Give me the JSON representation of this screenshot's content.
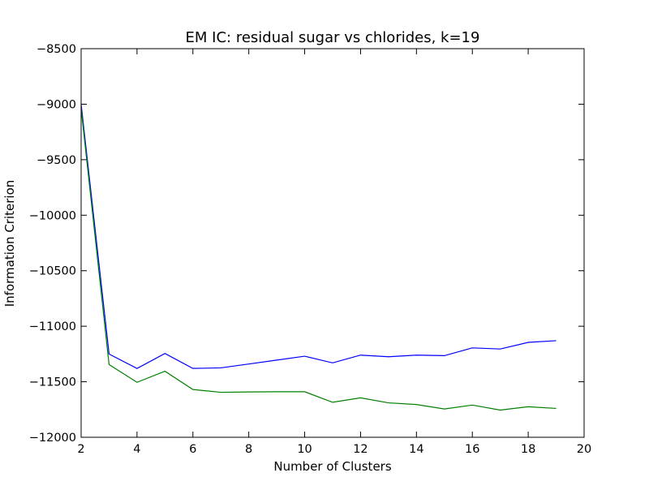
{
  "chart_data": {
    "type": "line",
    "title": "EM IC: residual sugar vs chlorides, k=19",
    "xlabel": "Number of Clusters",
    "ylabel": "Information Criterion",
    "xlim": [
      2,
      20
    ],
    "ylim": [
      -12000,
      -8500
    ],
    "xticks": [
      2,
      4,
      6,
      8,
      10,
      12,
      14,
      16,
      18,
      20
    ],
    "yticks": [
      -8500,
      -9000,
      -9500,
      -10000,
      -10500,
      -11000,
      -11500,
      -12000
    ],
    "grid": false,
    "x": [
      2,
      3,
      4,
      5,
      6,
      7,
      8,
      9,
      10,
      11,
      12,
      13,
      14,
      15,
      16,
      17,
      18,
      19
    ],
    "series": [
      {
        "color": "#0000ff",
        "values": [
          -9000,
          -11250,
          -11380,
          -11245,
          -11380,
          -11375,
          -11340,
          -11305,
          -11270,
          -11330,
          -11260,
          -11275,
          -11260,
          -11265,
          -11195,
          -11205,
          -11145,
          -11130
        ]
      },
      {
        "color": "#008000",
        "values": [
          -9040,
          -11345,
          -11505,
          -11405,
          -11570,
          -11595,
          -11592,
          -11590,
          -11590,
          -11685,
          -11645,
          -11690,
          -11705,
          -11745,
          -11710,
          -11755,
          -11725,
          -11740
        ]
      }
    ]
  }
}
